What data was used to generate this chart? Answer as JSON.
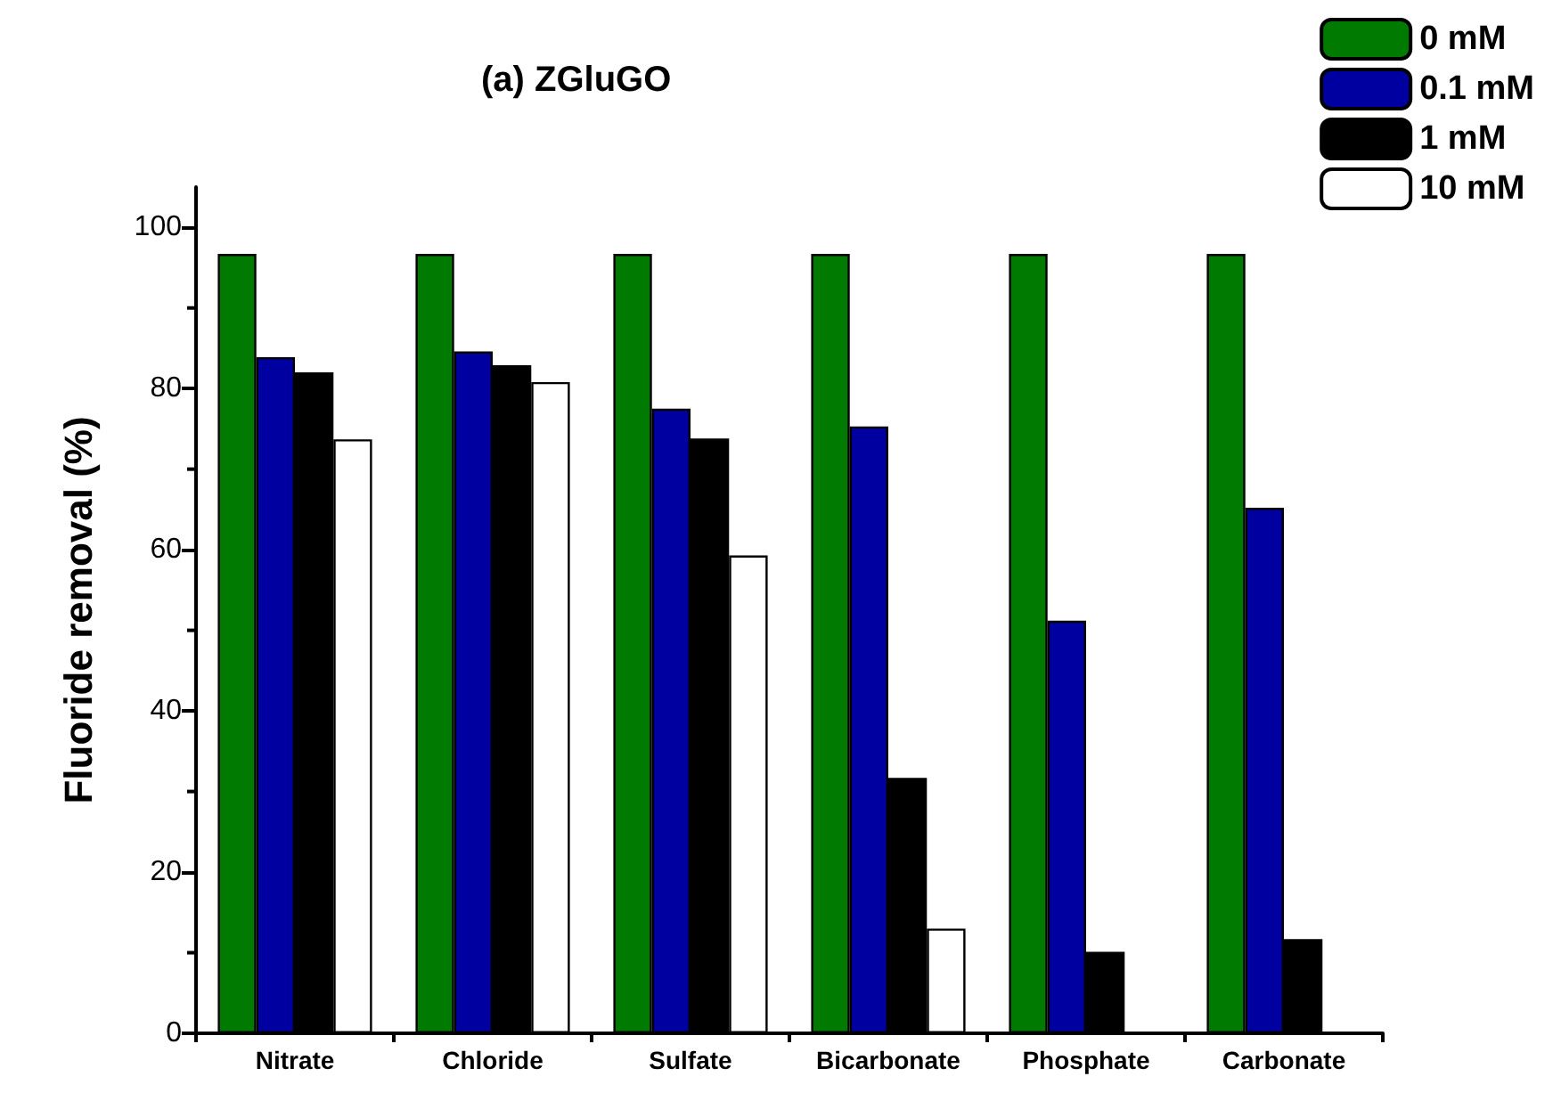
{
  "chart_data": {
    "type": "bar",
    "title": "(a) ZGluGO",
    "ylabel": "Fluoride removal (%)",
    "categories": [
      "Nitrate",
      "Chloride",
      "Sulfate",
      "Bicarbonate",
      "Phosphate",
      "Carbonate"
    ],
    "series": [
      {
        "name": "0 mM",
        "color": "#007a00",
        "values": [
          96.7,
          96.7,
          96.7,
          96.7,
          96.7,
          96.7
        ]
      },
      {
        "name": "0.1 mM",
        "color": "#0000a0",
        "values": [
          83.9,
          84.6,
          77.5,
          75.3,
          51.2,
          65.2
        ]
      },
      {
        "name": "1 mM",
        "color": "#000000",
        "values": [
          82.0,
          82.9,
          73.8,
          31.7,
          10.1,
          11.7
        ]
      },
      {
        "name": "10 mM",
        "color": "#ffffff",
        "values": [
          73.7,
          80.8,
          59.3,
          13.0,
          null,
          null
        ]
      }
    ],
    "ylim": [
      0,
      105
    ],
    "yticks": [
      0,
      20,
      40,
      60,
      80,
      100
    ],
    "grid": false,
    "legend": "top right"
  }
}
